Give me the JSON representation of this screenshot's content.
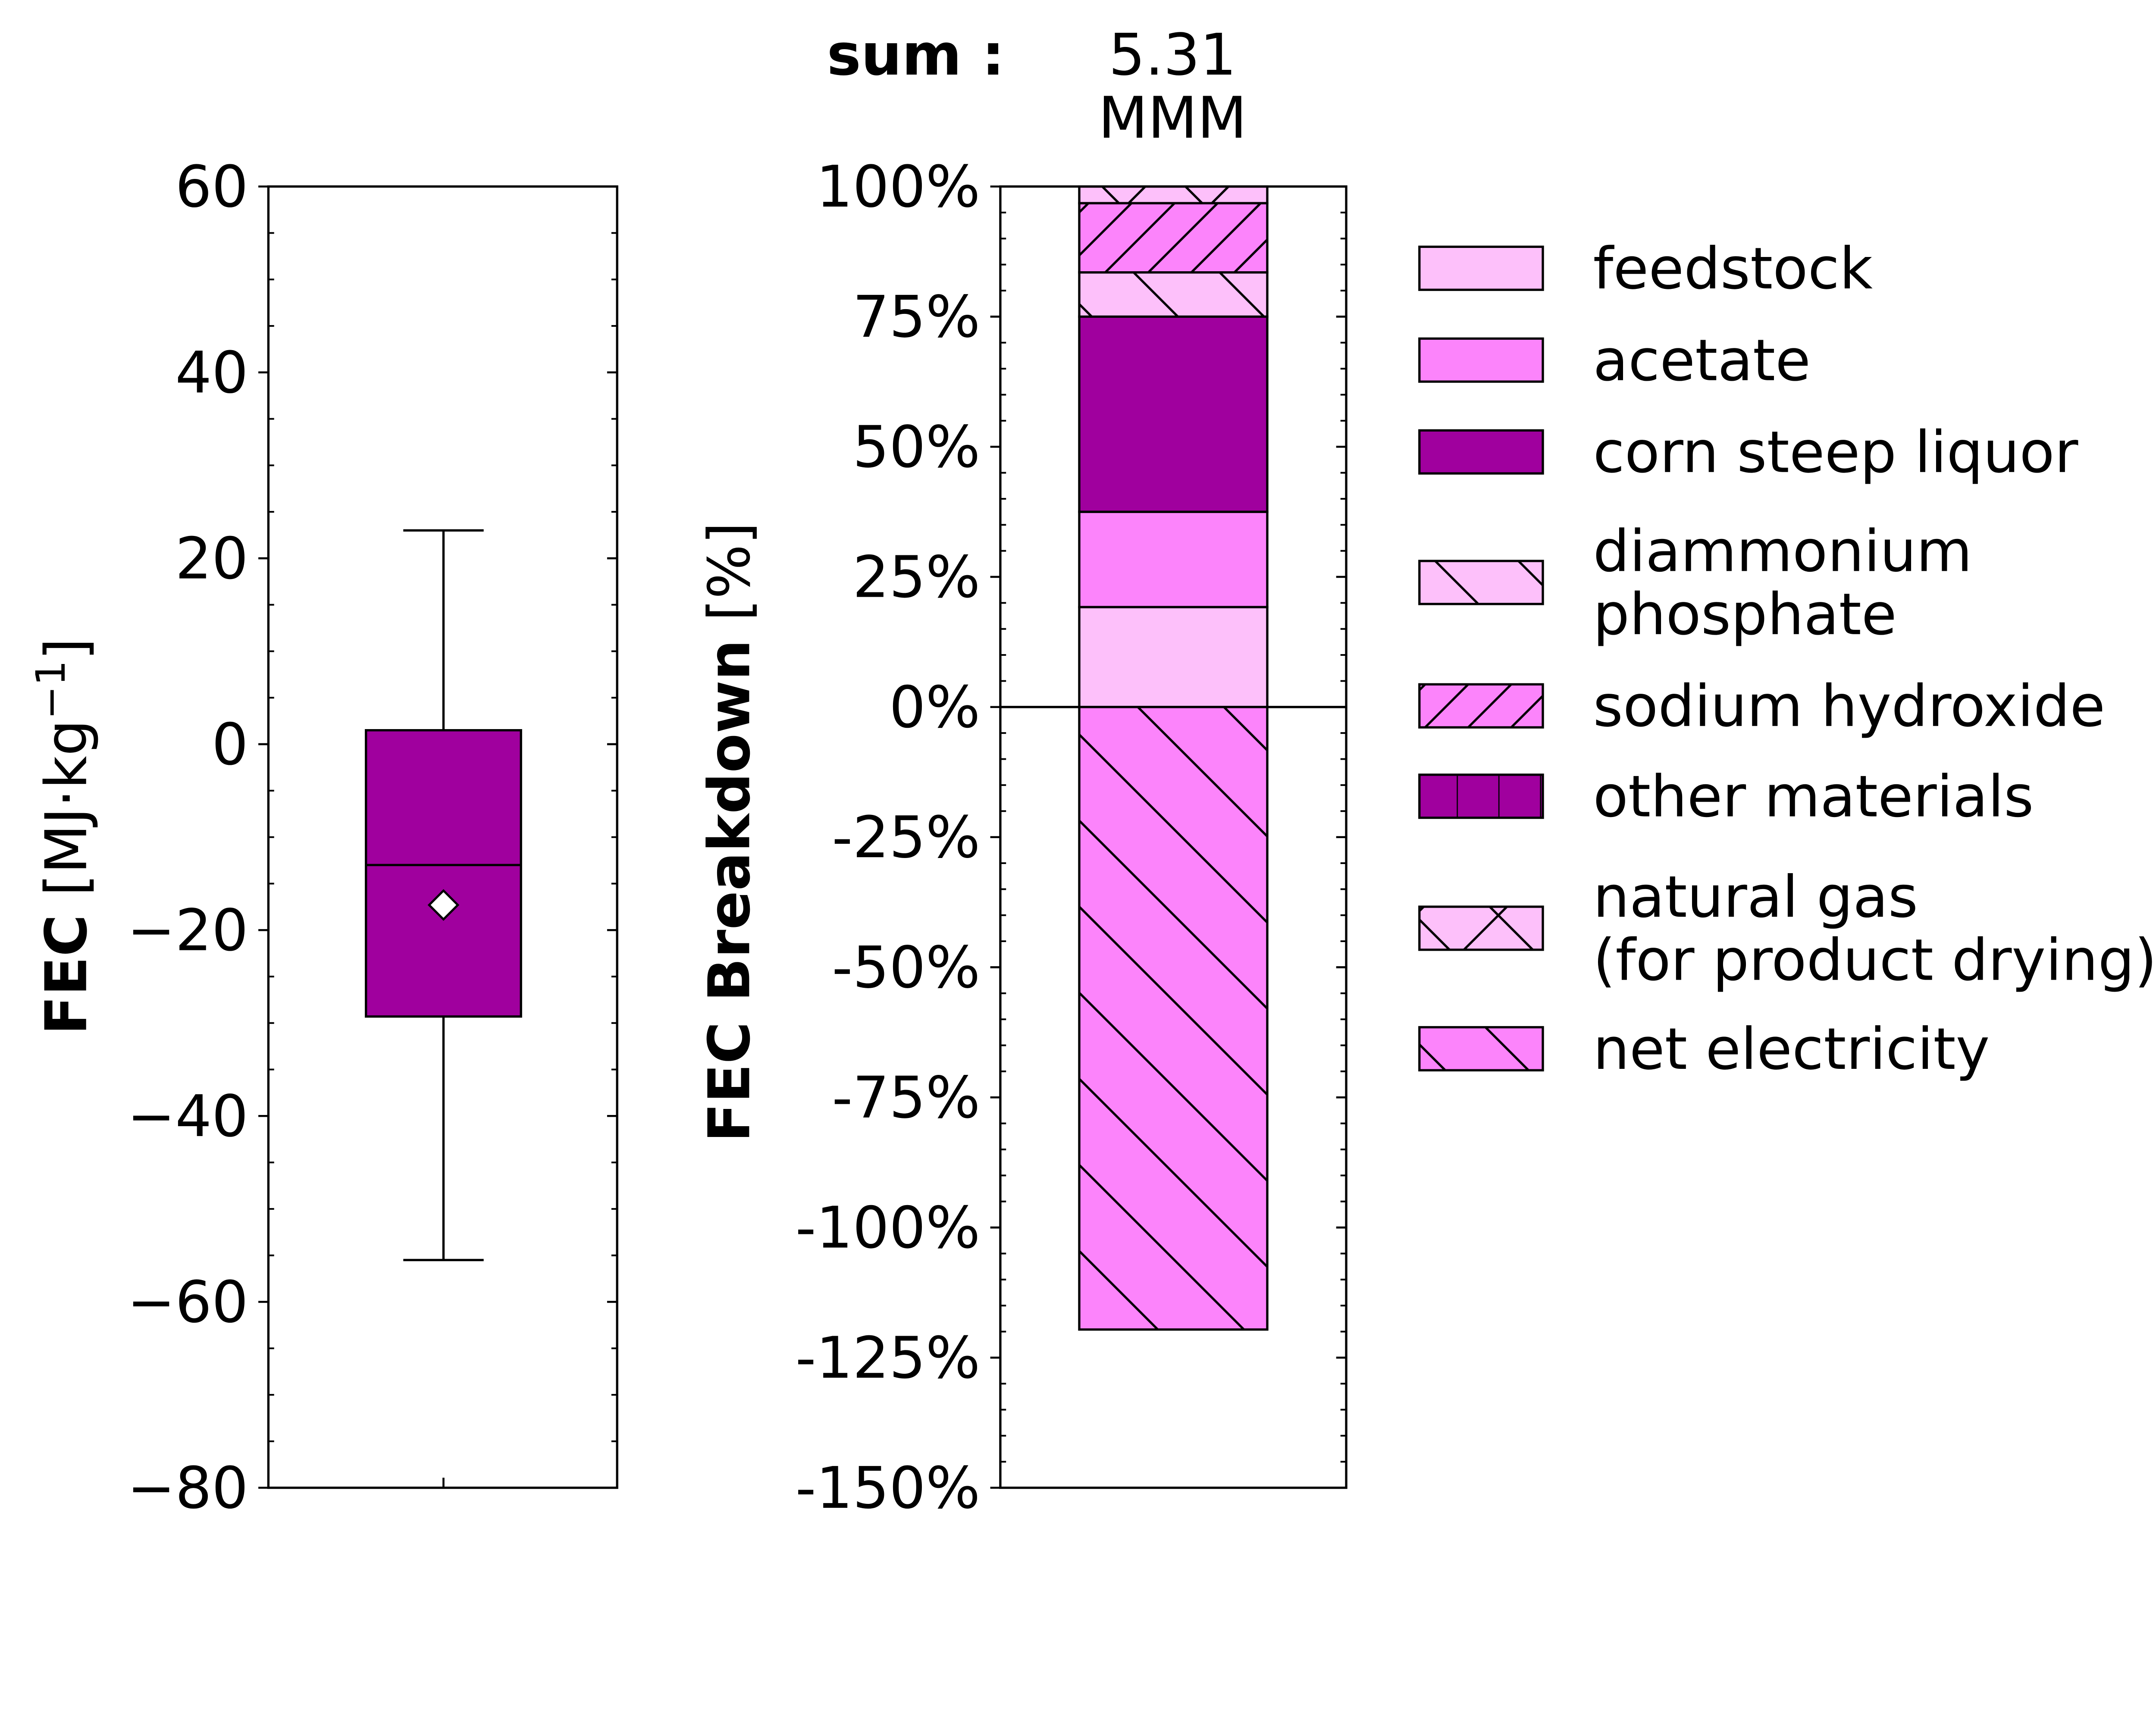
{
  "chart_data": [
    {
      "type": "box",
      "ylabel_bold": "FEC",
      "ylabel_unit": "[MJ·kg",
      "ylabel_exp": "−1",
      "ylabel_close": "]",
      "ylim": [
        -80,
        60
      ],
      "yticks": [
        60,
        40,
        20,
        0,
        -20,
        -40,
        -60,
        -80
      ],
      "ytick_labels": [
        "60",
        "40",
        "20",
        "0",
        "−20",
        "−40",
        "−60",
        "−80"
      ],
      "box": {
        "whisker_high": 23,
        "q3": 1.5,
        "median": -13,
        "mean": -17.3,
        "q1": -29.3,
        "whisker_low": -55.5,
        "color": "#A0009E"
      }
    },
    {
      "type": "stacked-bar",
      "sum_label": "sum :",
      "sum_value": "5.31",
      "sum_unit": "MMM",
      "ylabel_bold": "FEC Breakdown",
      "ylabel_unit": "[%]",
      "ylim": [
        -150,
        100
      ],
      "yticks": [
        100,
        75,
        50,
        25,
        0,
        -25,
        -50,
        -75,
        -100,
        -125,
        -150
      ],
      "ytick_labels": [
        "100%",
        "75%",
        "50%",
        "25%",
        "0%",
        "-25%",
        "-50%",
        "-75%",
        "-100%",
        "-125%",
        "-150%"
      ],
      "series": [
        {
          "name": "feedstock",
          "value": 19.2,
          "color": "#FDC0FA",
          "hatch": "none"
        },
        {
          "name": "acetate",
          "value": 18.3,
          "color": "#FC84FB",
          "hatch": "none"
        },
        {
          "name": "corn steep liquor",
          "value": 37.5,
          "color": "#A0009E",
          "hatch": "none"
        },
        {
          "name": "diammonium phosphate",
          "legend_lines": [
            "diammonium",
            "phosphate"
          ],
          "value": 8.5,
          "color": "#FDC0FA",
          "hatch": "backslash"
        },
        {
          "name": "sodium hydroxide",
          "value": 13.3,
          "color": "#FC84FB",
          "hatch": "slash"
        },
        {
          "name": "other materials",
          "value": 0,
          "color": "#A0009E",
          "hatch": "vertical"
        },
        {
          "name": "natural gas (for product drying)",
          "legend_lines": [
            "natural gas",
            "(for product drying)"
          ],
          "value": 3.2,
          "color": "#FDC0FA",
          "hatch": "cross"
        },
        {
          "name": "net electricity",
          "value": -119.6,
          "color": "#FC84FB",
          "hatch": "backslash"
        }
      ]
    }
  ]
}
